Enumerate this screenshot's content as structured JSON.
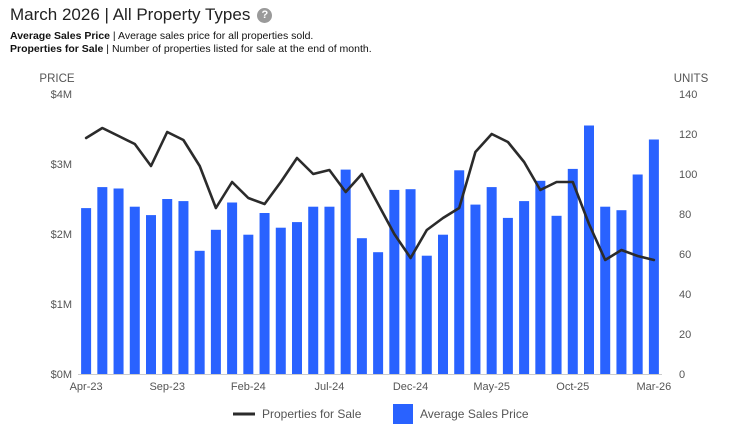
{
  "header": {
    "title": "March 2026 | All Property Types",
    "help_icon": "question-circle-icon",
    "definitions": [
      {
        "term": "Average Sales Price",
        "separator": " | ",
        "text": "Average sales price for all properties sold."
      },
      {
        "term": "Properties for Sale",
        "separator": " | ",
        "text": "Number of properties listed for sale at the end of month."
      }
    ]
  },
  "colors": {
    "bar": "#2962ff",
    "line": "#2b2b2b",
    "axis_text": "#555555"
  },
  "chart_data": {
    "type": "bar",
    "left_axis_label": "PRICE",
    "right_axis_label": "UNITS",
    "left_ticks": [
      "$0M",
      "$1M",
      "$2M",
      "$3M",
      "$4M"
    ],
    "left_ylim": [
      0,
      4
    ],
    "right_ticks": [
      "0",
      "20",
      "40",
      "60",
      "80",
      "100",
      "120",
      "140"
    ],
    "right_ylim": [
      0,
      140
    ],
    "x_tick_labels": [
      "Apr-23",
      "Sep-23",
      "Feb-24",
      "Jul-24",
      "Dec-24",
      "May-25",
      "Oct-25",
      "Mar-26"
    ],
    "x_tick_indices": [
      0,
      5,
      10,
      15,
      20,
      25,
      30,
      35
    ],
    "categories": [
      "Apr-23",
      "May-23",
      "Jun-23",
      "Jul-23",
      "Aug-23",
      "Sep-23",
      "Oct-23",
      "Nov-23",
      "Dec-23",
      "Jan-24",
      "Feb-24",
      "Mar-24",
      "Apr-24",
      "May-24",
      "Jun-24",
      "Jul-24",
      "Aug-24",
      "Sep-24",
      "Oct-24",
      "Nov-24",
      "Dec-24",
      "Jan-25",
      "Feb-25",
      "Mar-25",
      "Apr-25",
      "May-25",
      "Jun-25",
      "Jul-25",
      "Aug-25",
      "Sep-25",
      "Oct-25",
      "Nov-25",
      "Dec-25",
      "Jan-26",
      "Feb-26",
      "Mar-26"
    ],
    "series": [
      {
        "name": "Average Sales Price",
        "type": "bar",
        "axis": "left",
        "values": [
          2.37,
          2.67,
          2.65,
          2.39,
          2.27,
          2.5,
          2.47,
          1.76,
          2.06,
          2.45,
          1.99,
          2.3,
          2.09,
          2.17,
          2.39,
          2.39,
          2.92,
          1.94,
          1.74,
          2.63,
          2.64,
          1.69,
          1.99,
          2.91,
          2.42,
          2.67,
          2.23,
          2.47,
          2.76,
          2.26,
          2.93,
          3.55,
          2.39,
          2.34,
          2.85,
          3.35
        ]
      },
      {
        "name": "Properties for Sale",
        "type": "line",
        "axis": "right",
        "values": [
          118,
          123,
          119,
          115,
          104,
          121,
          117,
          104,
          83,
          96,
          88,
          85,
          96,
          108,
          100,
          102,
          91,
          100,
          85,
          70,
          58,
          72,
          78,
          83,
          111,
          120,
          116,
          106,
          92,
          96,
          96,
          75,
          57,
          62,
          59,
          57
        ]
      }
    ],
    "legend": {
      "position": "bottom",
      "items": [
        "Properties for Sale",
        "Average Sales Price"
      ]
    },
    "grid": false
  }
}
